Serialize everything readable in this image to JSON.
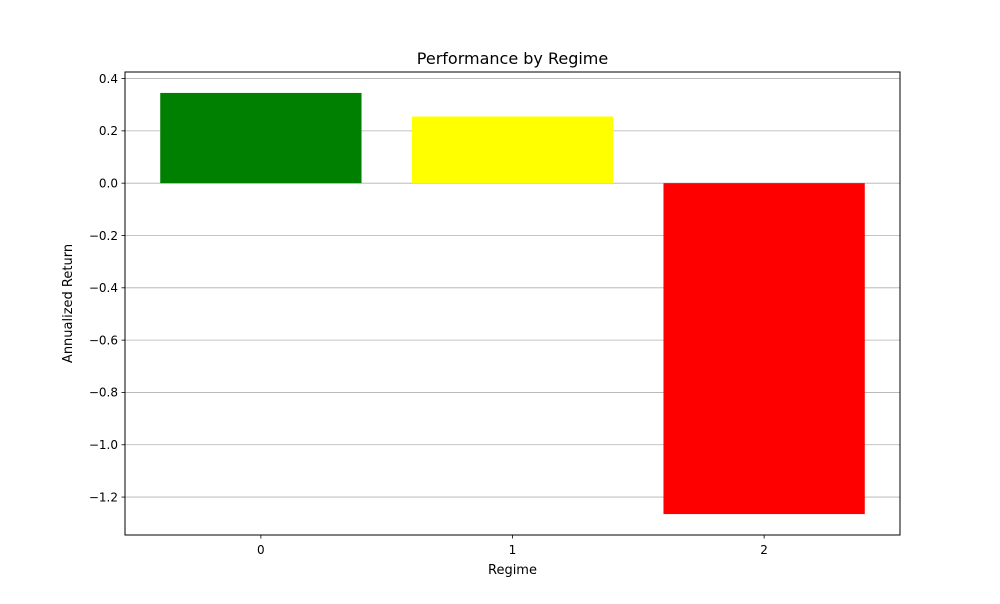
{
  "chart_data": {
    "type": "bar",
    "title": "Performance by Regime",
    "xlabel": "Regime",
    "ylabel": "Annualized Return",
    "categories": [
      "0",
      "1",
      "2"
    ],
    "values": [
      0.345,
      0.255,
      -1.265
    ],
    "colors": [
      "#008000",
      "#ffff00",
      "#ff0000"
    ],
    "ylim": [
      -1.345,
      0.425
    ],
    "yticks": [
      0.4,
      0.2,
      0.0,
      -0.2,
      -0.4,
      -0.6,
      -0.8,
      -1.0,
      -1.2
    ],
    "ytick_labels": [
      "0.4",
      "0.2",
      "0.0",
      "−0.2",
      "−0.4",
      "−0.6",
      "−0.8",
      "−1.0",
      "−1.2"
    ],
    "grid": "y-axis",
    "legend": "none"
  }
}
